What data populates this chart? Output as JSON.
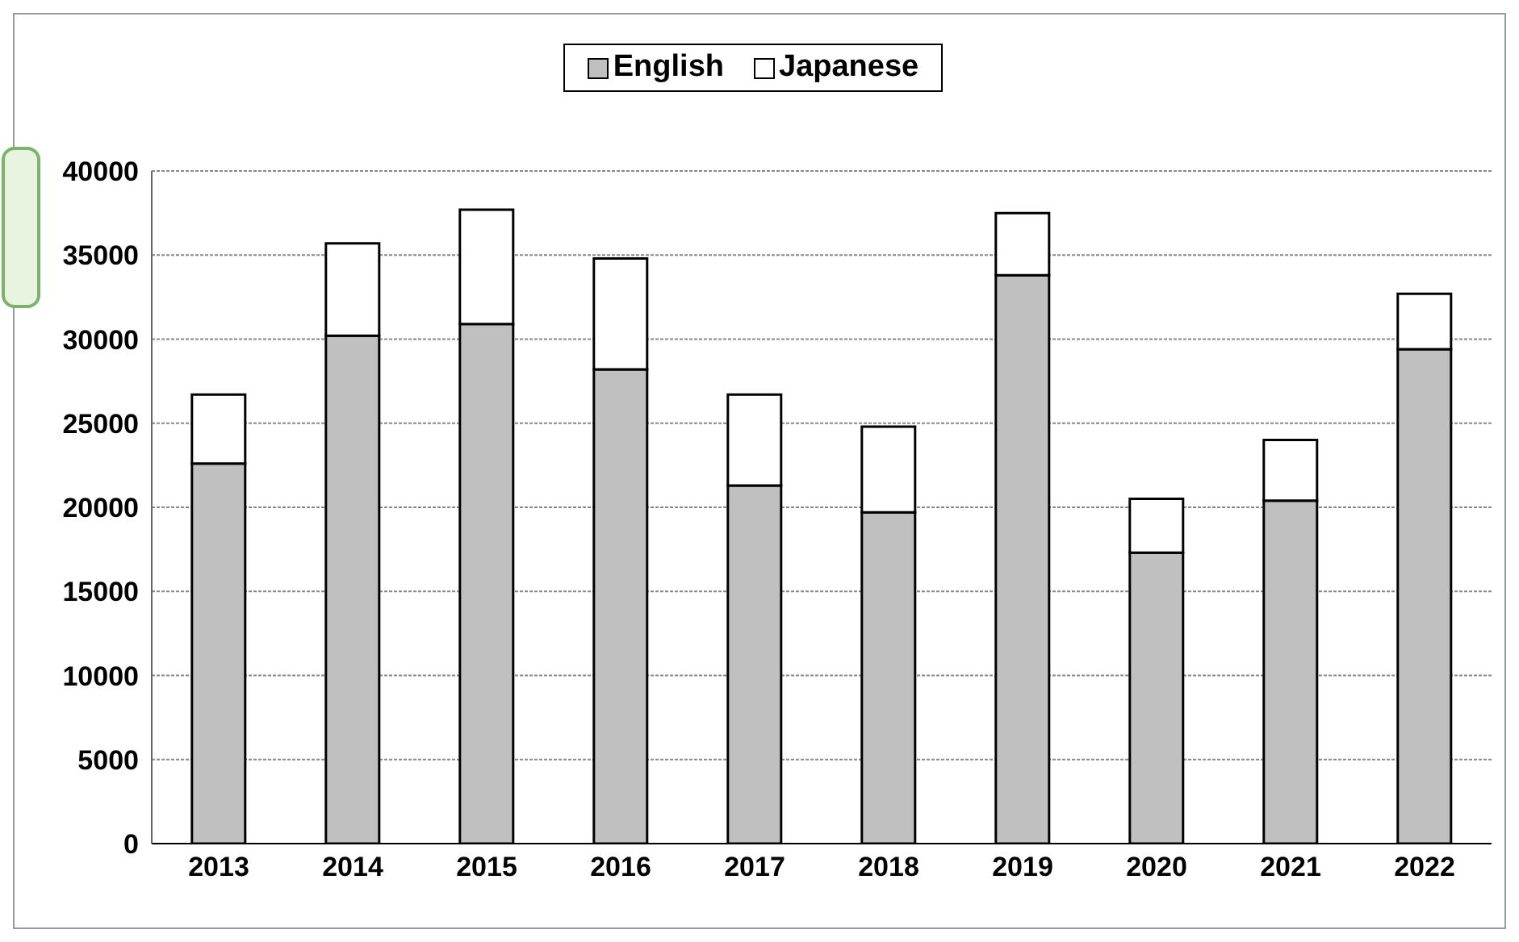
{
  "chart_data": {
    "type": "bar",
    "stacked": true,
    "categories": [
      "2013",
      "2014",
      "2015",
      "2016",
      "2017",
      "2018",
      "2019",
      "2020",
      "2021",
      "2022"
    ],
    "series": [
      {
        "name": "English",
        "color": "#c0c0c0",
        "values": [
          22600,
          30200,
          30900,
          28200,
          21300,
          19700,
          33800,
          17300,
          20400,
          29400
        ]
      },
      {
        "name": "Japanese",
        "color": "#ffffff",
        "values": [
          4100,
          5500,
          6800,
          6600,
          5400,
          5100,
          3700,
          3200,
          3600,
          3300
        ]
      }
    ],
    "ylim": [
      0,
      40000
    ],
    "yticks": [
      0,
      5000,
      10000,
      15000,
      20000,
      25000,
      30000,
      35000,
      40000
    ],
    "grid": "y",
    "legend": "top"
  }
}
